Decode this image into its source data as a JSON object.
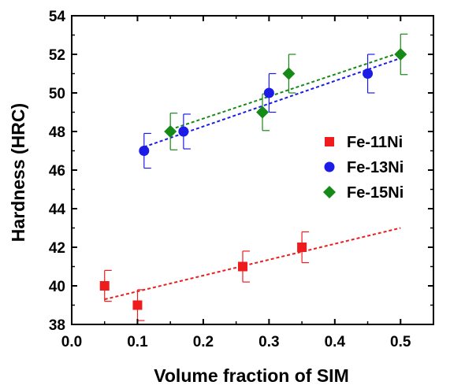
{
  "chart_data": {
    "type": "scatter",
    "title": "",
    "xlabel": "Volume fraction of SIM",
    "ylabel": "Hardness (HRC)",
    "xlim": [
      0.0,
      0.55
    ],
    "ylim": [
      38,
      54
    ],
    "xticks": [
      "0.0",
      "0.1",
      "0.2",
      "0.3",
      "0.4",
      "0.5"
    ],
    "yticks": [
      "38",
      "40",
      "42",
      "44",
      "46",
      "48",
      "50",
      "52",
      "54"
    ],
    "grid": false,
    "legend_position": "right",
    "series": [
      {
        "name": "Fe-11Ni",
        "color": "#ee1c1c",
        "marker": "square",
        "points": [
          {
            "x": 0.05,
            "y": 40.0,
            "err": 0.8
          },
          {
            "x": 0.1,
            "y": 39.0,
            "err": 0.8
          },
          {
            "x": 0.26,
            "y": 41.0,
            "err": 0.8
          },
          {
            "x": 0.35,
            "y": 42.0,
            "err": 0.8
          }
        ],
        "fit": {
          "x": [
            0.05,
            0.5
          ],
          "y": [
            39.3,
            43.0
          ]
        }
      },
      {
        "name": "Fe-13Ni",
        "color": "#1c1ce8",
        "marker": "circle",
        "points": [
          {
            "x": 0.11,
            "y": 47.0,
            "err": 0.9
          },
          {
            "x": 0.17,
            "y": 48.0,
            "err": 0.9
          },
          {
            "x": 0.3,
            "y": 50.0,
            "err": 1.0
          },
          {
            "x": 0.45,
            "y": 51.0,
            "err": 1.0
          }
        ],
        "fit": {
          "x": [
            0.11,
            0.5
          ],
          "y": [
            47.2,
            51.8
          ]
        }
      },
      {
        "name": "Fe-15Ni",
        "color": "#168a16",
        "marker": "diamond",
        "points": [
          {
            "x": 0.15,
            "y": 48.0,
            "err": 0.95
          },
          {
            "x": 0.29,
            "y": 49.0,
            "err": 0.95
          },
          {
            "x": 0.33,
            "y": 51.0,
            "err": 1.0
          },
          {
            "x": 0.5,
            "y": 52.0,
            "err": 1.05
          }
        ],
        "fit": {
          "x": [
            0.15,
            0.5
          ],
          "y": [
            48.1,
            52.1
          ]
        }
      }
    ]
  }
}
